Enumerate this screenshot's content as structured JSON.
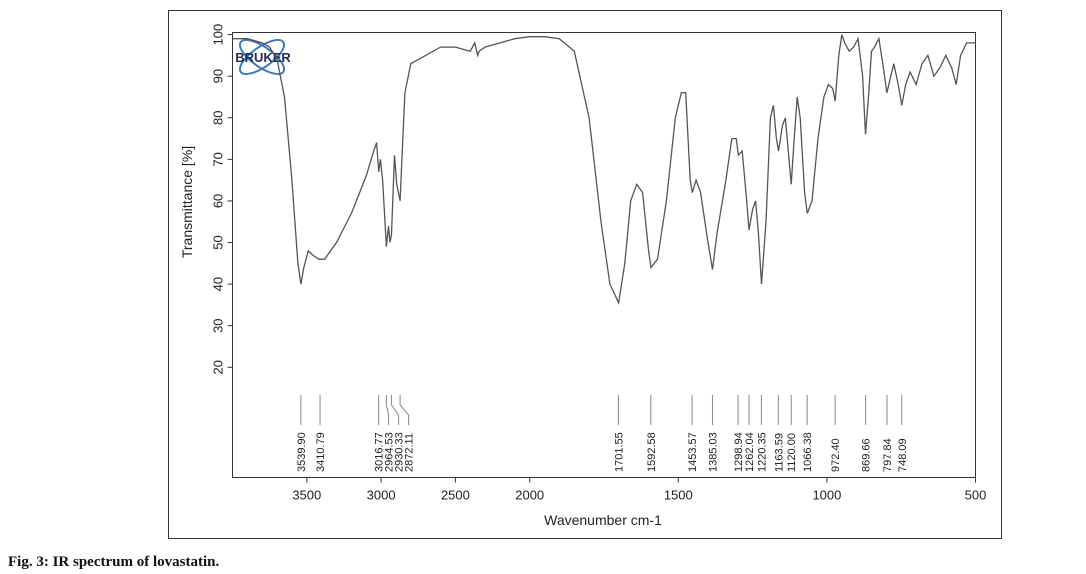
{
  "chart_data": {
    "type": "line",
    "x_label": "Wavenumber cm-1",
    "y_label": "Transmittance [%]",
    "caption": "Fig. 3: IR spectrum of lovastatin.",
    "logo_text": "BRUKER",
    "color": "#555555",
    "xlim": [
      4000,
      500
    ],
    "x_scale_break": 2000,
    "xticks": [
      3500,
      3000,
      2500,
      2000,
      1500,
      1000,
      500
    ],
    "ylim": [
      -6.5,
      100.5
    ],
    "yticks": [
      20,
      30,
      40,
      50,
      60,
      70,
      80,
      90,
      100
    ],
    "x": [
      4000,
      3900,
      3800,
      3750,
      3700,
      3650,
      3600,
      3560,
      3540,
      3520,
      3490,
      3460,
      3420,
      3380,
      3300,
      3200,
      3100,
      3050,
      3030,
      3016,
      3005,
      2990,
      2964,
      2950,
      2940,
      2930,
      2910,
      2895,
      2872,
      2860,
      2840,
      2800,
      2700,
      2600,
      2500,
      2400,
      2370,
      2350,
      2340,
      2300,
      2200,
      2100,
      2000,
      1950,
      1900,
      1850,
      1800,
      1760,
      1730,
      1701,
      1680,
      1660,
      1640,
      1620,
      1600,
      1592,
      1570,
      1540,
      1510,
      1490,
      1475,
      1460,
      1453,
      1440,
      1425,
      1400,
      1385,
      1370,
      1340,
      1320,
      1305,
      1298,
      1285,
      1270,
      1262,
      1250,
      1240,
      1230,
      1220,
      1205,
      1190,
      1180,
      1170,
      1163,
      1150,
      1140,
      1130,
      1120,
      1110,
      1100,
      1090,
      1075,
      1066,
      1050,
      1030,
      1010,
      995,
      980,
      972,
      960,
      950,
      940,
      925,
      910,
      895,
      880,
      870,
      860,
      850,
      840,
      825,
      810,
      798,
      785,
      775,
      760,
      748,
      735,
      720,
      700,
      680,
      660,
      640,
      620,
      600,
      580,
      565,
      550,
      530,
      500
    ],
    "values": [
      99,
      99,
      98,
      97,
      94,
      85,
      65,
      45,
      40,
      44,
      48,
      47,
      46,
      46,
      50,
      57,
      66,
      72,
      74,
      67,
      70,
      65,
      49,
      54,
      50,
      52,
      71,
      64,
      60,
      70,
      86,
      93,
      95,
      97,
      97,
      96,
      98,
      95,
      96,
      97,
      98,
      99,
      99.5,
      99.5,
      99,
      96,
      80,
      55,
      40,
      35.5,
      45,
      60,
      64,
      62,
      48,
      44,
      46,
      60,
      80,
      86,
      86,
      65,
      62,
      65,
      62,
      50,
      43.5,
      52,
      65,
      75,
      75,
      71,
      72,
      60,
      53,
      58,
      60,
      52,
      40,
      55,
      80,
      83,
      75,
      72,
      78,
      80,
      72,
      64,
      75,
      85,
      80,
      62,
      57,
      60,
      75,
      85,
      88,
      87,
      84,
      95,
      100,
      98,
      96,
      97,
      99,
      90,
      76,
      85,
      96,
      97,
      99,
      92,
      86,
      90,
      93,
      88,
      83,
      88,
      91,
      88,
      93,
      95,
      90,
      92,
      95,
      92,
      88,
      95,
      98,
      98
    ],
    "peaks": [
      {
        "value": 3539.9,
        "label": "3539.90"
      },
      {
        "value": 3410.79,
        "label": "3410.79"
      },
      {
        "value": 3016.77,
        "label": "3016.77"
      },
      {
        "value": 2964.53,
        "label": "2964.53"
      },
      {
        "value": 2930.33,
        "label": "2930.33"
      },
      {
        "value": 2872.11,
        "label": "2872.11"
      },
      {
        "value": 1701.55,
        "label": "1701.55"
      },
      {
        "value": 1592.58,
        "label": "1592.58"
      },
      {
        "value": 1453.57,
        "label": "1453.57"
      },
      {
        "value": 1385.03,
        "label": "1385.03"
      },
      {
        "value": 1298.94,
        "label": "1298.94"
      },
      {
        "value": 1262.04,
        "label": "1262.04"
      },
      {
        "value": 1220.35,
        "label": "1220.35"
      },
      {
        "value": 1163.59,
        "label": "1163.59"
      },
      {
        "value": 1120,
        "label": "1120.00"
      },
      {
        "value": 1066.38,
        "label": "1066.38"
      },
      {
        "value": 972.4,
        "label": "972.40"
      },
      {
        "value": 869.66,
        "label": "869.66"
      },
      {
        "value": 797.84,
        "label": "797.84"
      },
      {
        "value": 748.09,
        "label": "748.09"
      }
    ]
  }
}
